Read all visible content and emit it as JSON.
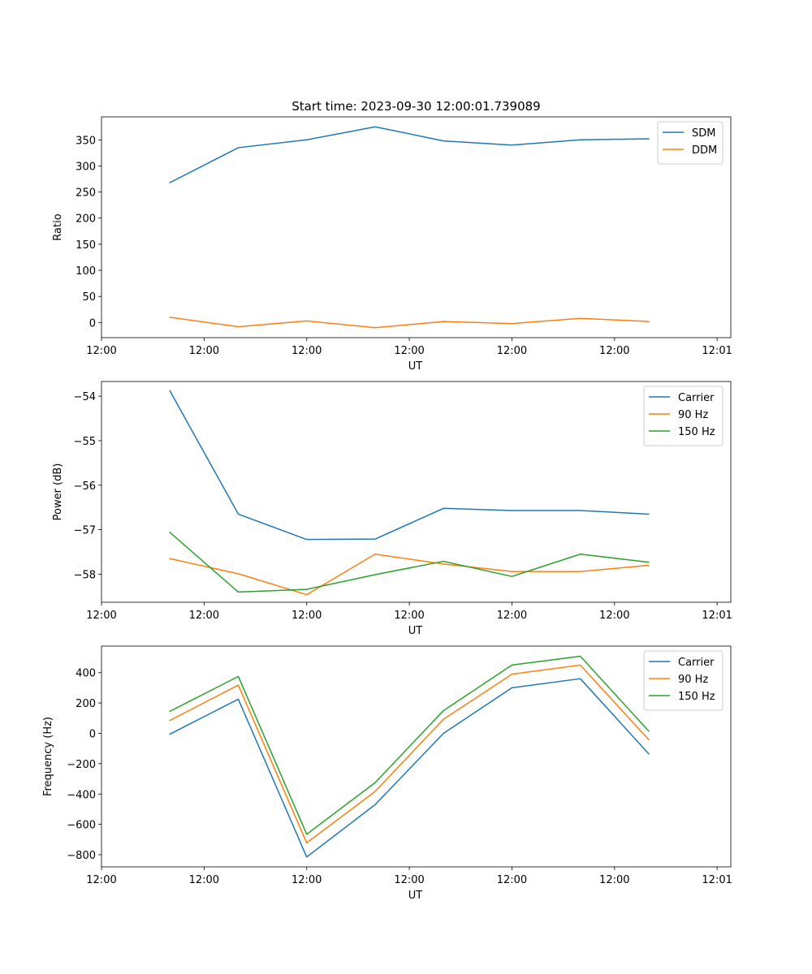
{
  "chart_data": [
    {
      "type": "line",
      "title": "Start time: 2023-09-30 12:00:01.739089",
      "xlabel": "UT",
      "ylabel": "Ratio",
      "x": [
        0.5,
        1.0,
        1.5,
        2.0,
        2.5,
        3.0,
        3.5,
        4.0
      ],
      "xlim": [
        0,
        4.6
      ],
      "xticks": [
        0.0,
        0.75,
        1.5,
        2.25,
        3.0,
        3.75,
        4.5
      ],
      "xtick_labels": [
        "12:00",
        "12:00",
        "12:00",
        "12:00",
        "12:00",
        "12:00",
        "12:01"
      ],
      "ylim": [
        -29,
        394
      ],
      "yticks": [
        0,
        50,
        100,
        150,
        200,
        250,
        300,
        350
      ],
      "ytick_labels": [
        "0",
        "50",
        "100",
        "150",
        "200",
        "250",
        "300",
        "350"
      ],
      "legend_position": "top-right",
      "series": [
        {
          "name": "SDM",
          "color": "#1f77b4",
          "values": [
            268,
            335,
            350,
            375,
            348,
            340,
            350,
            352
          ]
        },
        {
          "name": "DDM",
          "color": "#ff7f0e",
          "values": [
            10,
            -8,
            3,
            -10,
            2,
            -2,
            8,
            2
          ]
        }
      ]
    },
    {
      "type": "line",
      "title": "",
      "xlabel": "UT",
      "ylabel": "Power (dB)",
      "x": [
        0.5,
        1.0,
        1.5,
        2.0,
        2.5,
        3.0,
        3.5,
        4.0
      ],
      "xlim": [
        0,
        4.6
      ],
      "xticks": [
        0.0,
        0.75,
        1.5,
        2.25,
        3.0,
        3.75,
        4.5
      ],
      "xtick_labels": [
        "12:00",
        "12:00",
        "12:00",
        "12:00",
        "12:00",
        "12:00",
        "12:01"
      ],
      "ylim": [
        -58.63,
        -53.67
      ],
      "yticks": [
        -58,
        -57,
        -56,
        -55,
        -54
      ],
      "ytick_labels": [
        "−58",
        "−57",
        "−56",
        "−55",
        "−54"
      ],
      "legend_position": "top-right",
      "series": [
        {
          "name": "Carrier",
          "color": "#1f77b4",
          "values": [
            -53.88,
            -56.65,
            -57.22,
            -57.21,
            -56.52,
            -56.57,
            -56.57,
            -56.65
          ]
        },
        {
          "name": "90 Hz",
          "color": "#ff7f0e",
          "values": [
            -57.65,
            -57.99,
            -58.46,
            -57.55,
            -57.77,
            -57.94,
            -57.94,
            -57.8
          ]
        },
        {
          "name": "150 Hz",
          "color": "#2ca02c",
          "values": [
            -57.06,
            -58.4,
            -58.34,
            -58.01,
            -57.71,
            -58.05,
            -57.55,
            -57.73
          ]
        }
      ]
    },
    {
      "type": "line",
      "title": "",
      "xlabel": "UT",
      "ylabel": "Frequency (Hz)",
      "x": [
        0.5,
        1.0,
        1.5,
        2.0,
        2.5,
        3.0,
        3.5,
        4.0
      ],
      "xlim": [
        0,
        4.6
      ],
      "xticks": [
        0.0,
        0.75,
        1.5,
        2.25,
        3.0,
        3.75,
        4.5
      ],
      "xtick_labels": [
        "12:00",
        "12:00",
        "12:00",
        "12:00",
        "12:00",
        "12:00",
        "12:01"
      ],
      "ylim": [
        -880,
        575
      ],
      "yticks": [
        -800,
        -600,
        -400,
        -200,
        0,
        200,
        400
      ],
      "ytick_labels": [
        "−800",
        "−600",
        "−400",
        "−200",
        "0",
        "200",
        "400"
      ],
      "legend_position": "top-right",
      "series": [
        {
          "name": "Carrier",
          "color": "#1f77b4",
          "values": [
            -5,
            225,
            -815,
            -470,
            0,
            300,
            360,
            -135
          ]
        },
        {
          "name": "90 Hz",
          "color": "#ff7f0e",
          "values": [
            85,
            318,
            -722,
            -383,
            93,
            390,
            450,
            -42
          ]
        },
        {
          "name": "150 Hz",
          "color": "#2ca02c",
          "values": [
            145,
            375,
            -665,
            -325,
            150,
            450,
            508,
            15
          ]
        }
      ]
    }
  ]
}
